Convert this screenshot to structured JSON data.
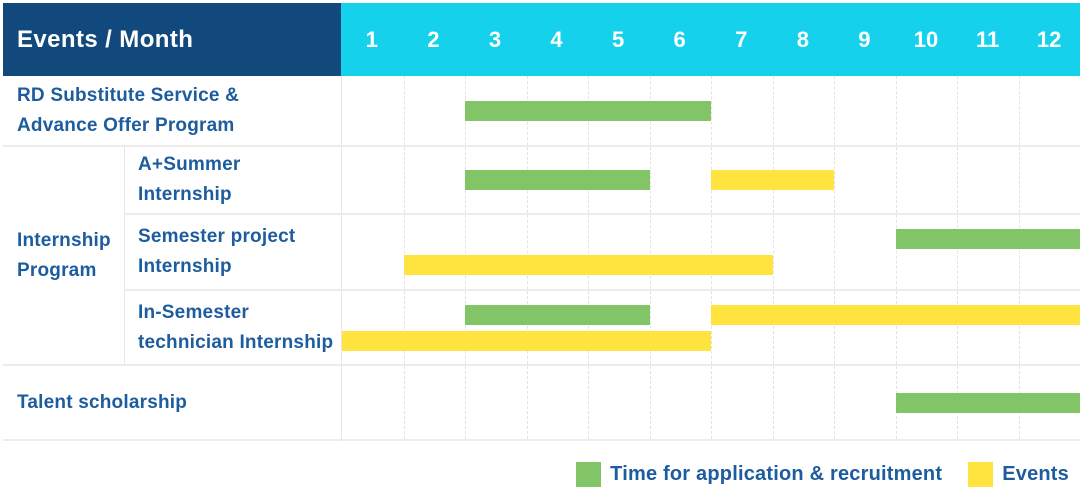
{
  "chart_data": {
    "type": "table",
    "subtype": "gantt",
    "title": "Events / Month",
    "months": [
      "1",
      "2",
      "3",
      "4",
      "5",
      "6",
      "7",
      "8",
      "9",
      "10",
      "11",
      "12"
    ],
    "x_range": [
      1,
      12
    ],
    "grid": "dashed-vertical-month-lines",
    "rows": [
      {
        "group": null,
        "label": "RD Substitute Service & Advance Offer Program",
        "label_lines": [
          "RD Substitute Service &",
          "Advance Offer Program"
        ],
        "lines": 1,
        "bars": [
          {
            "type": "recruitment",
            "start_month": 3,
            "end_month": 6,
            "line": 0
          }
        ]
      },
      {
        "group": "Internship Program",
        "label": "A+Summer Internship",
        "label_lines": [
          "A+Summer",
          "Internship"
        ],
        "lines": 1,
        "bars": [
          {
            "type": "recruitment",
            "start_month": 3,
            "end_month": 5,
            "line": 0
          },
          {
            "type": "event",
            "start_month": 7,
            "end_month": 8,
            "line": 0
          }
        ]
      },
      {
        "group": "Internship Program",
        "label": "Semester project Internship",
        "label_lines": [
          "Semester project",
          "Internship"
        ],
        "lines": 2,
        "bars": [
          {
            "type": "recruitment",
            "start_month": 10,
            "end_month": 12,
            "line": 0
          },
          {
            "type": "event",
            "start_month": 2,
            "end_month": 7,
            "line": 1
          }
        ]
      },
      {
        "group": "Internship Program",
        "label": "In-Semester technician Internship",
        "label_lines": [
          "In-Semester",
          "technician Internship"
        ],
        "lines": 2,
        "bars": [
          {
            "type": "recruitment",
            "start_month": 3,
            "end_month": 5,
            "line": 0
          },
          {
            "type": "event",
            "start_month": 7,
            "end_month": 12,
            "line": 0
          },
          {
            "type": "event",
            "start_month": 1,
            "end_month": 6,
            "line": 1
          }
        ]
      },
      {
        "group": null,
        "label": "Talent scholarship",
        "label_lines": [
          "Talent scholarship"
        ],
        "lines": 1,
        "bars": [
          {
            "type": "recruitment",
            "start_month": 10,
            "end_month": 12,
            "line": 0
          }
        ]
      }
    ],
    "group_label_lines": [
      "Internship",
      "Program"
    ],
    "legend": [
      {
        "key": "recruitment",
        "label": "Time for application & recruitment",
        "color": "#82c566"
      },
      {
        "key": "event",
        "label": "Events",
        "color": "#ffe33e"
      }
    ],
    "legend_position": "bottom-right",
    "colors": {
      "recruitment": "#82c566",
      "event": "#ffe33e",
      "header_navy": "#11497d",
      "header_cyan": "#16d1ec",
      "label_text": "#1d5c9e"
    }
  }
}
